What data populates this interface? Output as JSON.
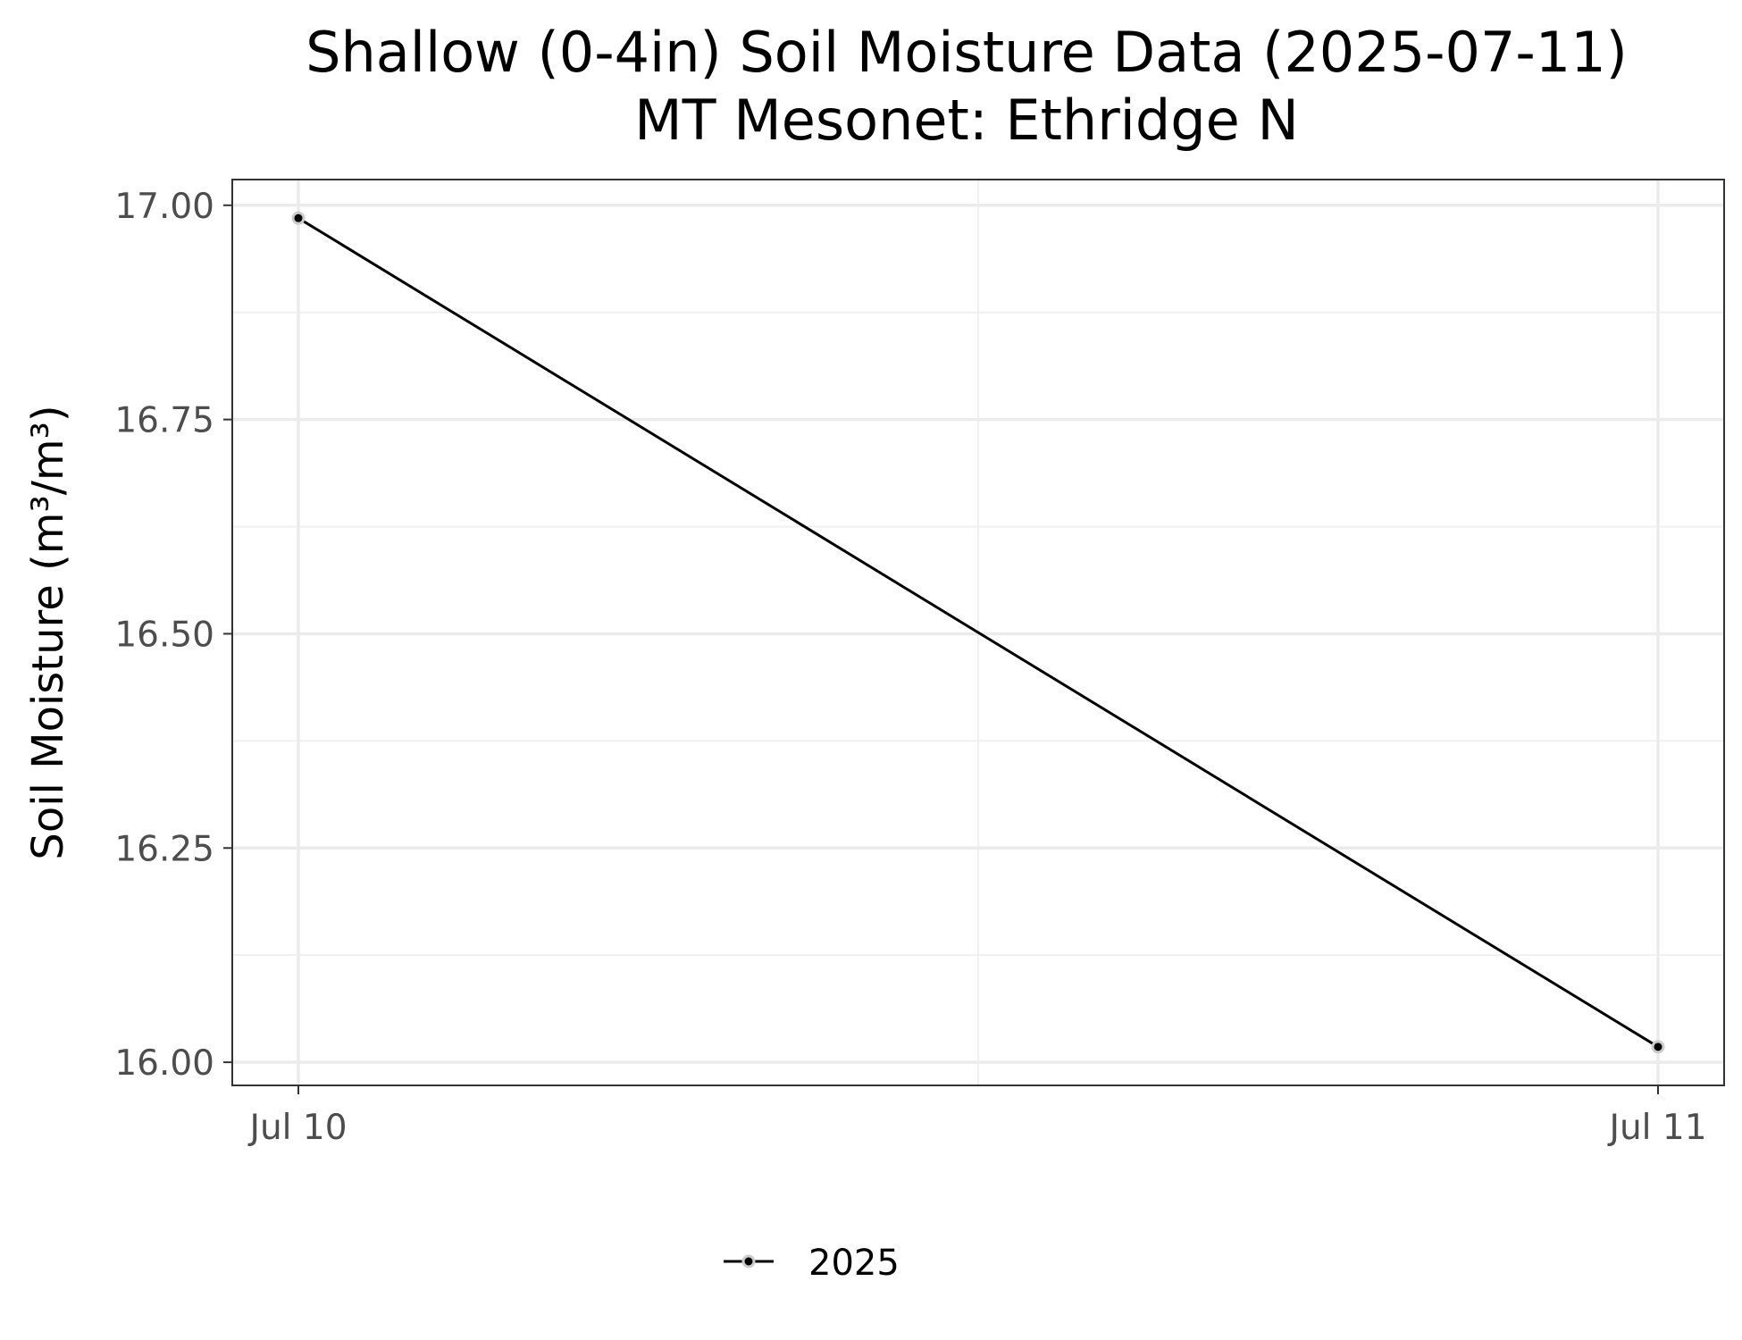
{
  "chart_data": {
    "type": "line",
    "title": "Shallow (0-4in) Soil Moisture Data (2025-07-11)",
    "subtitle": "MT Mesonet: Ethridge N",
    "xlabel": "",
    "ylabel": "Soil Moisture (m³/m³)",
    "x_ticks": [
      "Jul 10",
      "Jul 11"
    ],
    "y_ticks": [
      "16.00",
      "16.25",
      "16.50",
      "16.75",
      "17.00"
    ],
    "ylim": [
      15.973,
      17.03
    ],
    "x_range": [
      "Jul 10",
      "Jul 11"
    ],
    "grid": true,
    "legend_position": "bottom",
    "series": [
      {
        "name": "2025",
        "color": "#000000",
        "x": [
          "Jul 10",
          "Jul 11"
        ],
        "values": [
          16.985,
          16.018
        ]
      }
    ]
  }
}
